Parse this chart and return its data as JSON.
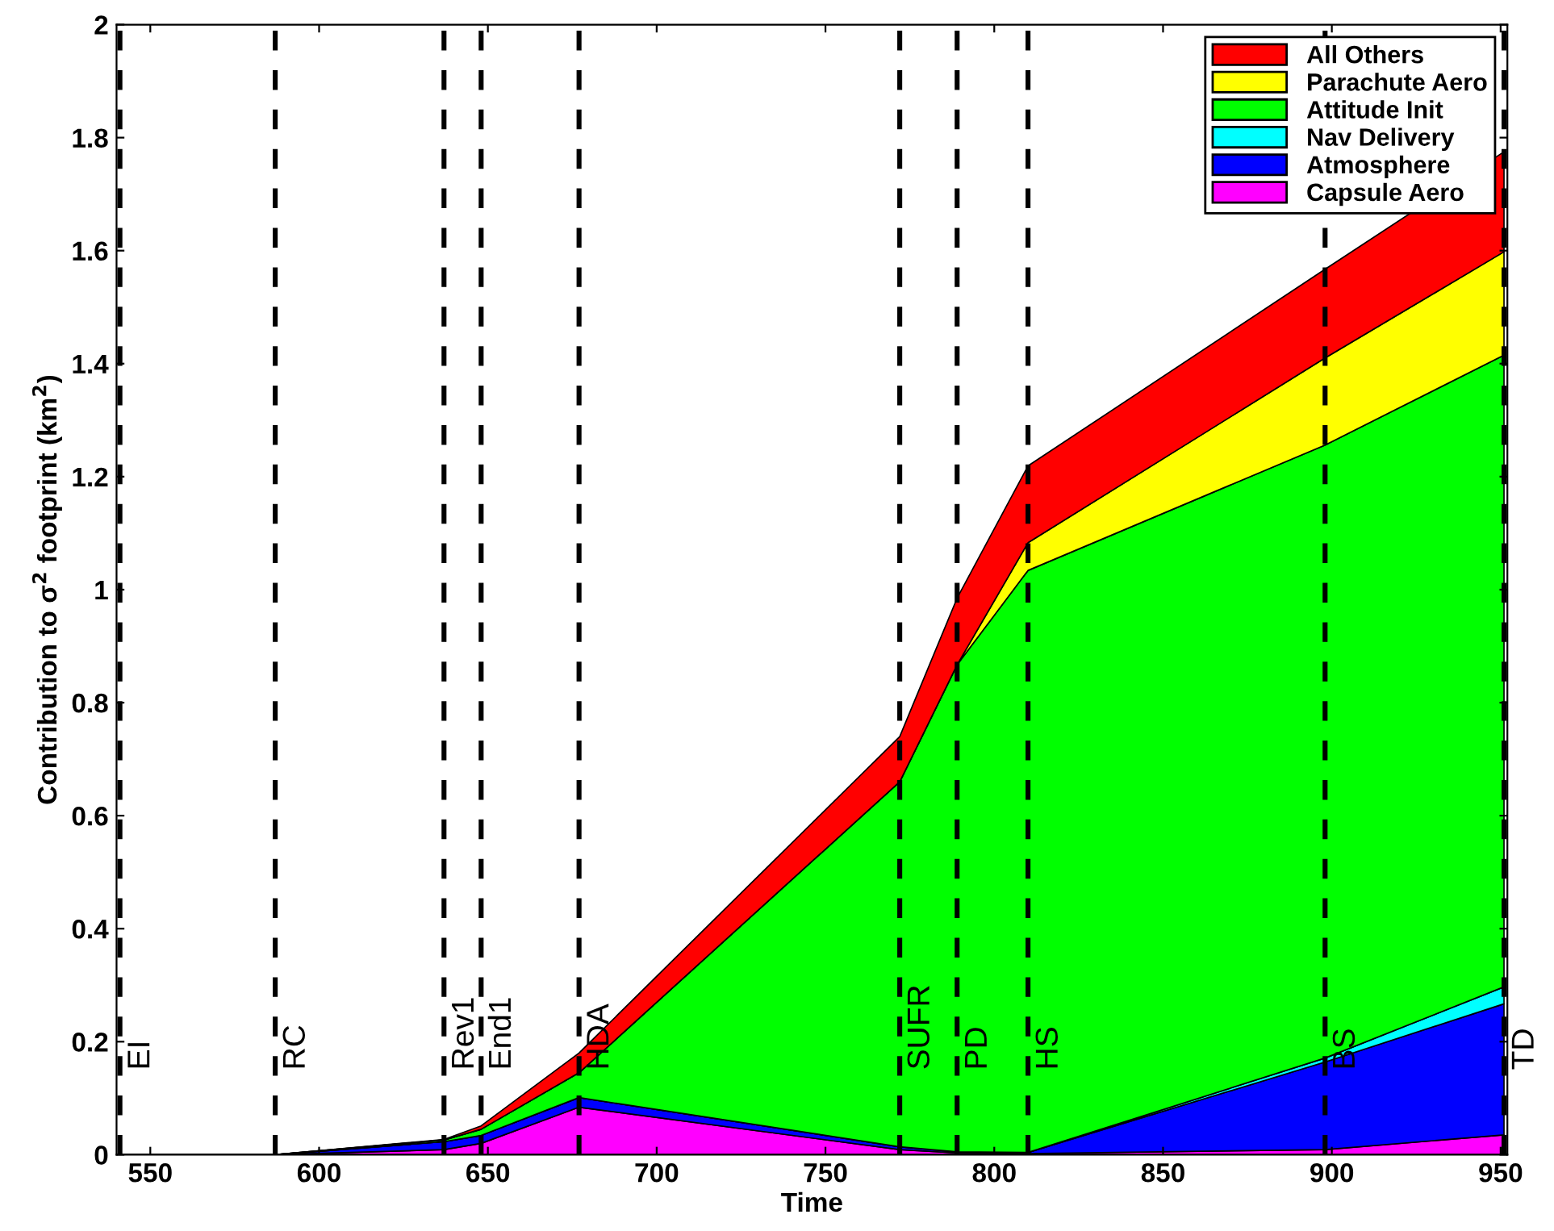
{
  "chart_data": {
    "type": "area",
    "stacked": true,
    "xlabel": "Time",
    "ylabel": "Contribution to σ$^{2}$ footprint (km$^{2}$)",
    "x": [
      541,
      587,
      637,
      648,
      677,
      772,
      789,
      810,
      898,
      951
    ],
    "series": [
      {
        "name": "Capsule Aero",
        "color": "#ff00ff",
        "values": [
          0,
          0,
          0.009,
          0.02,
          0.084,
          0.009,
          0.003,
          0.002,
          0.009,
          0.035
        ]
      },
      {
        "name": "Atmosphere",
        "color": "#0000ff",
        "values": [
          0,
          0,
          0.014,
          0.014,
          0.017,
          0.005,
          0.002,
          0.002,
          0.155,
          0.232
        ]
      },
      {
        "name": "Nav Delivery",
        "color": "#00ffff",
        "values": [
          0,
          0,
          0,
          0,
          0,
          0,
          0,
          0,
          0.007,
          0.03
        ]
      },
      {
        "name": "Attitude Init",
        "color": "#00ff00",
        "values": [
          0,
          0,
          0.003,
          0.011,
          0.044,
          0.646,
          0.862,
          1.03,
          1.085,
          1.118
        ]
      },
      {
        "name": "Parachute Aero",
        "color": "#ffff00",
        "values": [
          0,
          0,
          0,
          0,
          0,
          0,
          0,
          0.049,
          0.154,
          0.183
        ]
      },
      {
        "name": "All Others",
        "color": "#ff0000",
        "values": [
          0,
          0,
          0.001,
          0.006,
          0.035,
          0.08,
          0.118,
          0.136,
          0.157,
          0.177
        ]
      }
    ],
    "xlim": [
      540,
      952
    ],
    "ylim": [
      0,
      2
    ],
    "xticks": [
      550,
      600,
      650,
      700,
      750,
      800,
      850,
      900,
      950
    ],
    "yticks": [
      0,
      0.2,
      0.4,
      0.6,
      0.8,
      1,
      1.2,
      1.4,
      1.6,
      1.8,
      2
    ],
    "ref_lines": [
      {
        "axis": "x",
        "value": 541,
        "label": "EI",
        "color": "#000000",
        "line_style": "dashed"
      },
      {
        "axis": "x",
        "value": 587,
        "label": "RC",
        "color": "#000000",
        "line_style": "dashed"
      },
      {
        "axis": "x",
        "value": 637,
        "label": "Rev1",
        "color": "#000000",
        "line_style": "dashed"
      },
      {
        "axis": "x",
        "value": 648,
        "label": "End1",
        "color": "#000000",
        "line_style": "dashed"
      },
      {
        "axis": "x",
        "value": 677,
        "label": "HDA",
        "color": "#000000",
        "line_style": "dashed"
      },
      {
        "axis": "x",
        "value": 772,
        "label": "SUFR",
        "color": "#000000",
        "line_style": "dashed"
      },
      {
        "axis": "x",
        "value": 789,
        "label": "PD",
        "color": "#000000",
        "line_style": "dashed"
      },
      {
        "axis": "x",
        "value": 810,
        "label": "HS",
        "color": "#000000",
        "line_style": "dashed"
      },
      {
        "axis": "x",
        "value": 898,
        "label": "BS",
        "color": "#000000",
        "line_style": "dashed"
      },
      {
        "axis": "x",
        "value": 951,
        "label": "TD",
        "color": "#000000",
        "line_style": "dashed"
      }
    ],
    "grid": false,
    "legend": "top right"
  }
}
